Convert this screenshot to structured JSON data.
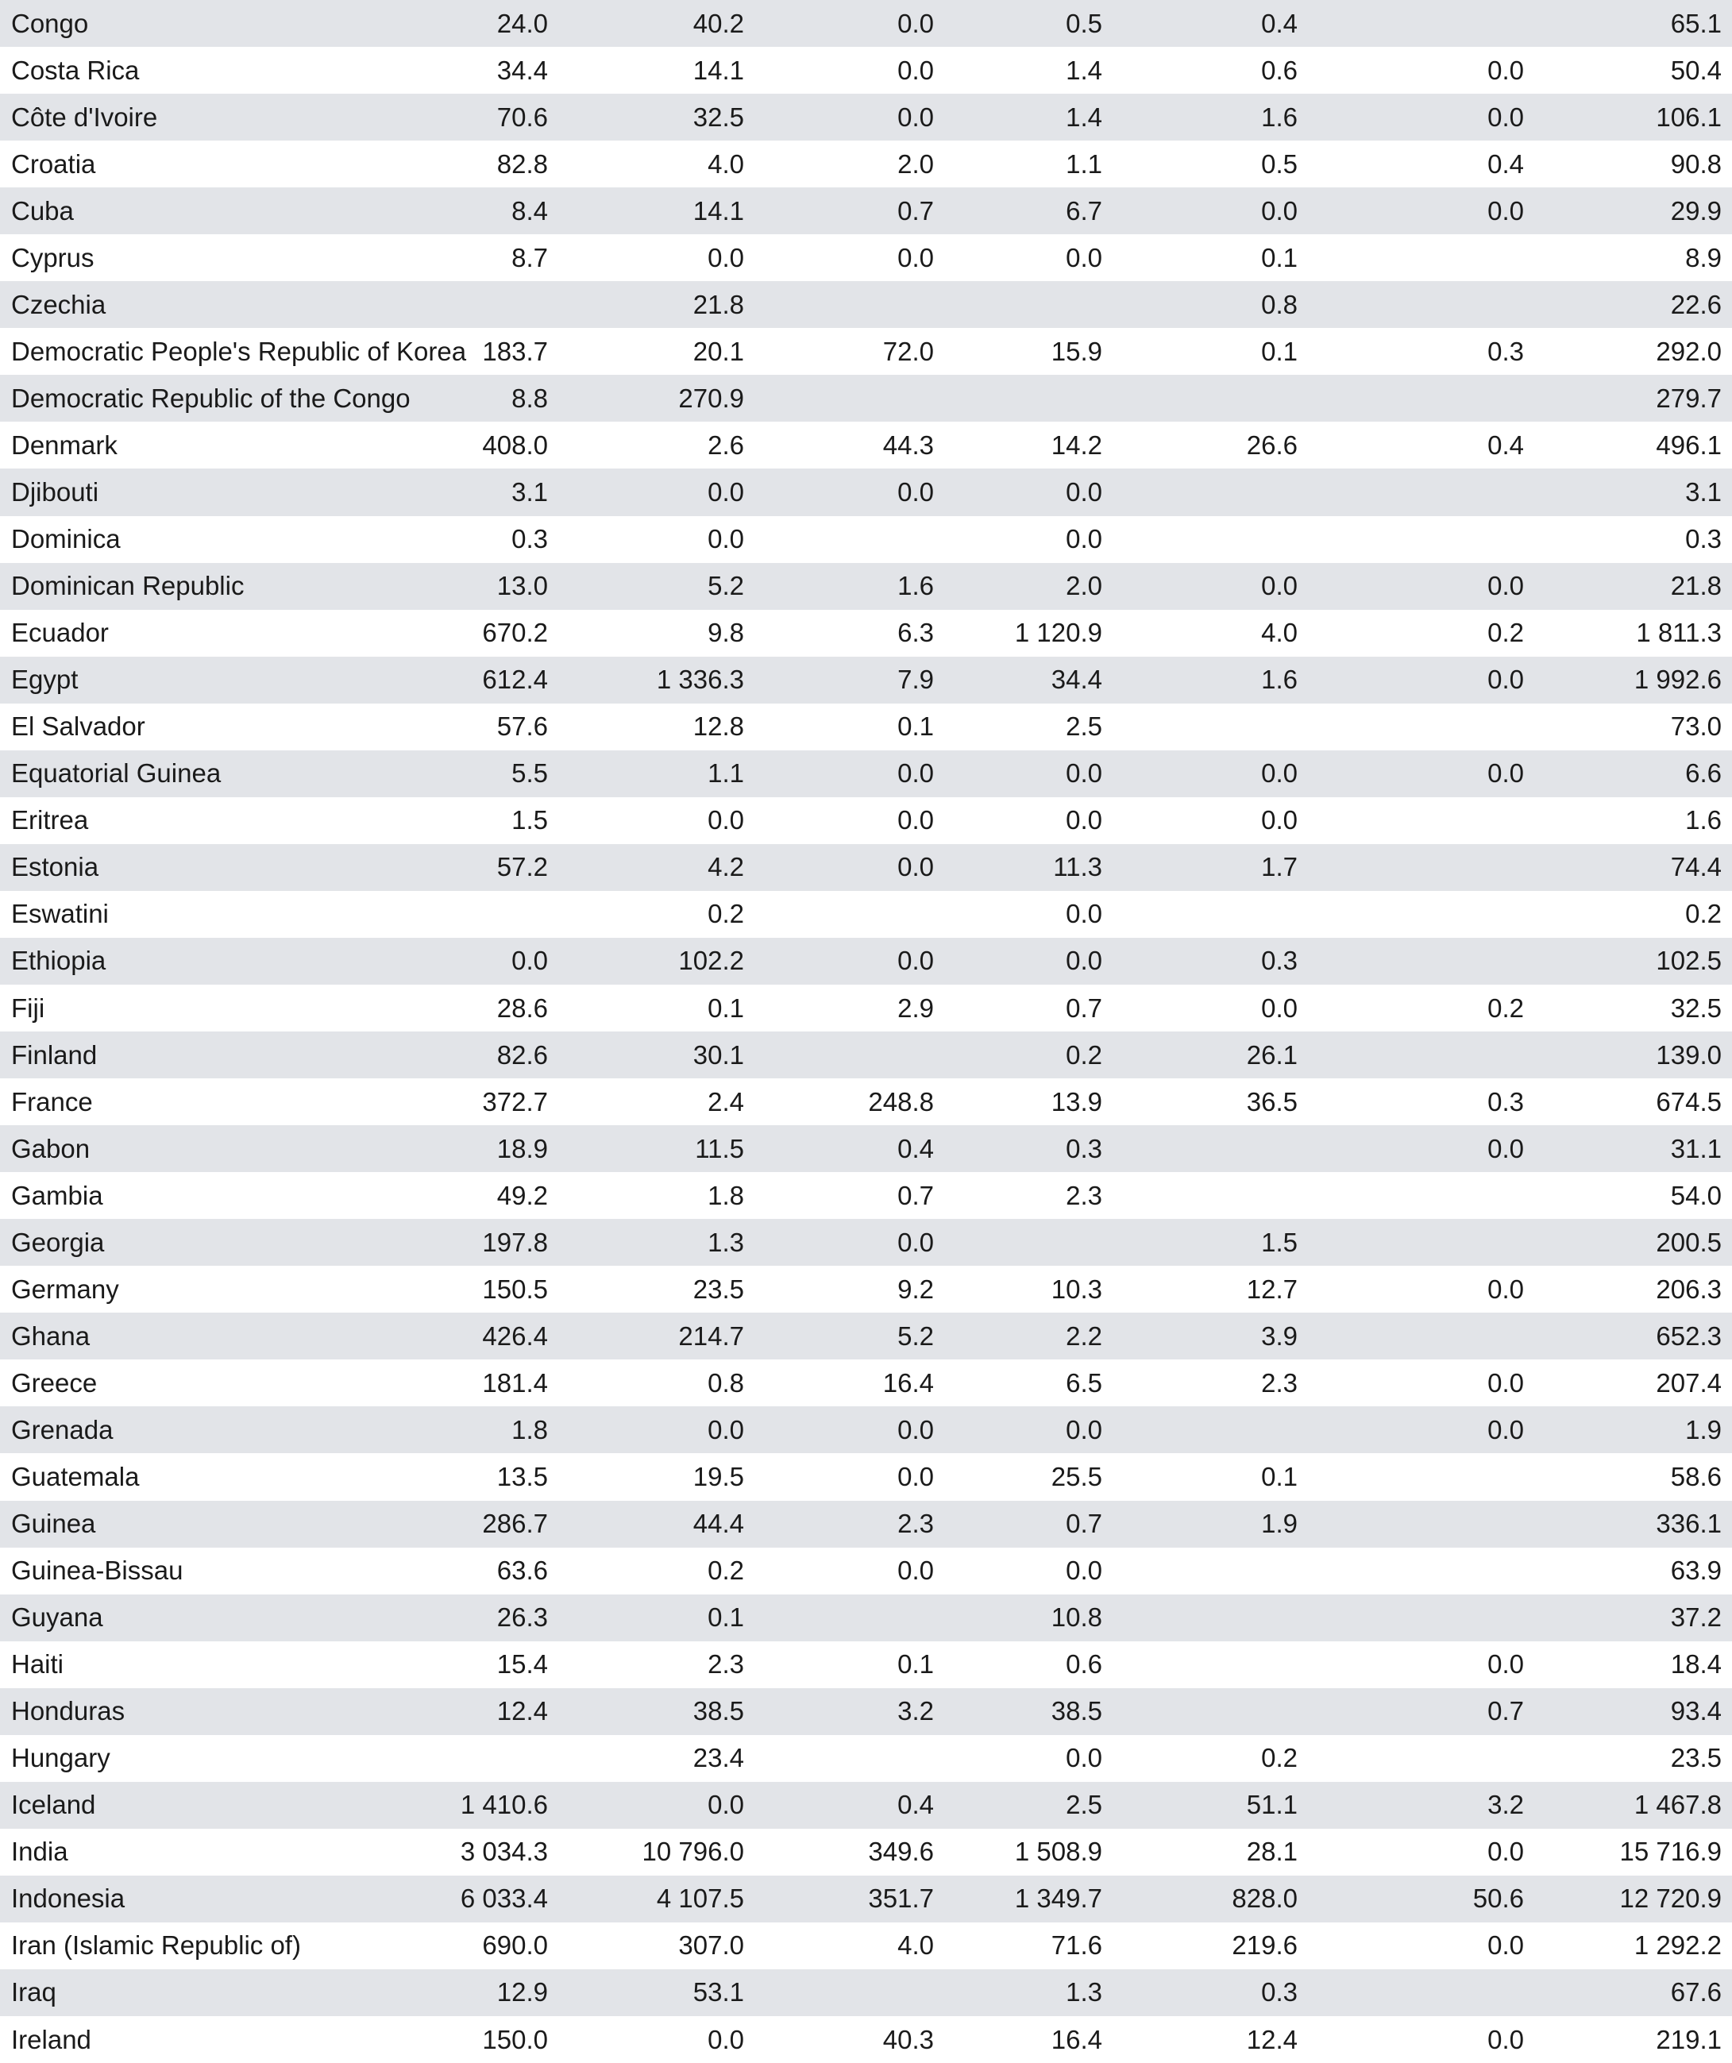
{
  "table": {
    "rows": [
      [
        "Congo",
        "24.0",
        "40.2",
        "0.0",
        "0.5",
        "0.4",
        "",
        "65.1"
      ],
      [
        "Costa Rica",
        "34.4",
        "14.1",
        "0.0",
        "1.4",
        "0.6",
        "0.0",
        "50.4"
      ],
      [
        "Côte d'Ivoire",
        "70.6",
        "32.5",
        "0.0",
        "1.4",
        "1.6",
        "0.0",
        "106.1"
      ],
      [
        "Croatia",
        "82.8",
        "4.0",
        "2.0",
        "1.1",
        "0.5",
        "0.4",
        "90.8"
      ],
      [
        "Cuba",
        "8.4",
        "14.1",
        "0.7",
        "6.7",
        "0.0",
        "0.0",
        "29.9"
      ],
      [
        "Cyprus",
        "8.7",
        "0.0",
        "0.0",
        "0.0",
        "0.1",
        "",
        "8.9"
      ],
      [
        "Czechia",
        "",
        "21.8",
        "",
        "",
        "0.8",
        "",
        "22.6"
      ],
      [
        "Democratic People's Republic of Korea",
        "183.7",
        "20.1",
        "72.0",
        "15.9",
        "0.1",
        "0.3",
        "292.0"
      ],
      [
        "Democratic Republic of the Congo",
        "8.8",
        "270.9",
        "",
        "",
        "",
        "",
        "279.7"
      ],
      [
        "Denmark",
        "408.0",
        "2.6",
        "44.3",
        "14.2",
        "26.6",
        "0.4",
        "496.1"
      ],
      [
        "Djibouti",
        "3.1",
        "0.0",
        "0.0",
        "0.0",
        "",
        "",
        "3.1"
      ],
      [
        "Dominica",
        "0.3",
        "0.0",
        "",
        "0.0",
        "",
        "",
        "0.3"
      ],
      [
        "Dominican Republic",
        "13.0",
        "5.2",
        "1.6",
        "2.0",
        "0.0",
        "0.0",
        "21.8"
      ],
      [
        "Ecuador",
        "670.2",
        "9.8",
        "6.3",
        "1 120.9",
        "4.0",
        "0.2",
        "1 811.3"
      ],
      [
        "Egypt",
        "612.4",
        "1 336.3",
        "7.9",
        "34.4",
        "1.6",
        "0.0",
        "1 992.6"
      ],
      [
        "El Salvador",
        "57.6",
        "12.8",
        "0.1",
        "2.5",
        "",
        "",
        "73.0"
      ],
      [
        "Equatorial Guinea",
        "5.5",
        "1.1",
        "0.0",
        "0.0",
        "0.0",
        "0.0",
        "6.6"
      ],
      [
        "Eritrea",
        "1.5",
        "0.0",
        "0.0",
        "0.0",
        "0.0",
        "",
        "1.6"
      ],
      [
        "Estonia",
        "57.2",
        "4.2",
        "0.0",
        "11.3",
        "1.7",
        "",
        "74.4"
      ],
      [
        "Eswatini",
        "",
        "0.2",
        "",
        "0.0",
        "",
        "",
        "0.2"
      ],
      [
        "Ethiopia",
        "0.0",
        "102.2",
        "0.0",
        "0.0",
        "0.3",
        "",
        "102.5"
      ],
      [
        "Fiji",
        "28.6",
        "0.1",
        "2.9",
        "0.7",
        "0.0",
        "0.2",
        "32.5"
      ],
      [
        "Finland",
        "82.6",
        "30.1",
        "",
        "0.2",
        "26.1",
        "",
        "139.0"
      ],
      [
        "France",
        "372.7",
        "2.4",
        "248.8",
        "13.9",
        "36.5",
        "0.3",
        "674.5"
      ],
      [
        "Gabon",
        "18.9",
        "11.5",
        "0.4",
        "0.3",
        "",
        "0.0",
        "31.1"
      ],
      [
        "Gambia",
        "49.2",
        "1.8",
        "0.7",
        "2.3",
        "",
        "",
        "54.0"
      ],
      [
        "Georgia",
        "197.8",
        "1.3",
        "0.0",
        "",
        "1.5",
        "",
        "200.5"
      ],
      [
        "Germany",
        "150.5",
        "23.5",
        "9.2",
        "10.3",
        "12.7",
        "0.0",
        "206.3"
      ],
      [
        "Ghana",
        "426.4",
        "214.7",
        "5.2",
        "2.2",
        "3.9",
        "",
        "652.3"
      ],
      [
        "Greece",
        "181.4",
        "0.8",
        "16.4",
        "6.5",
        "2.3",
        "0.0",
        "207.4"
      ],
      [
        "Grenada",
        "1.8",
        "0.0",
        "0.0",
        "0.0",
        "",
        "0.0",
        "1.9"
      ],
      [
        "Guatemala",
        "13.5",
        "19.5",
        "0.0",
        "25.5",
        "0.1",
        "",
        "58.6"
      ],
      [
        "Guinea",
        "286.7",
        "44.4",
        "2.3",
        "0.7",
        "1.9",
        "",
        "336.1"
      ],
      [
        "Guinea-Bissau",
        "63.6",
        "0.2",
        "0.0",
        "0.0",
        "",
        "",
        "63.9"
      ],
      [
        "Guyana",
        "26.3",
        "0.1",
        "",
        "10.8",
        "",
        "",
        "37.2"
      ],
      [
        "Haiti",
        "15.4",
        "2.3",
        "0.1",
        "0.6",
        "",
        "0.0",
        "18.4"
      ],
      [
        "Honduras",
        "12.4",
        "38.5",
        "3.2",
        "38.5",
        "",
        "0.7",
        "93.4"
      ],
      [
        "Hungary",
        "",
        "23.4",
        "",
        "0.0",
        "0.2",
        "",
        "23.5"
      ],
      [
        "Iceland",
        "1 410.6",
        "0.0",
        "0.4",
        "2.5",
        "51.1",
        "3.2",
        "1 467.8"
      ],
      [
        "India",
        "3 034.3",
        "10 796.0",
        "349.6",
        "1 508.9",
        "28.1",
        "0.0",
        "15 716.9"
      ],
      [
        "Indonesia",
        "6 033.4",
        "4 107.5",
        "351.7",
        "1 349.7",
        "828.0",
        "50.6",
        "12 720.9"
      ],
      [
        "Iran (Islamic Republic of)",
        "690.0",
        "307.0",
        "4.0",
        "71.6",
        "219.6",
        "0.0",
        "1 292.2"
      ],
      [
        "Iraq",
        "12.9",
        "53.1",
        "",
        "1.3",
        "0.3",
        "",
        "67.6"
      ],
      [
        "Ireland",
        "150.0",
        "0.0",
        "40.3",
        "16.4",
        "12.4",
        "0.0",
        "219.1"
      ]
    ]
  }
}
